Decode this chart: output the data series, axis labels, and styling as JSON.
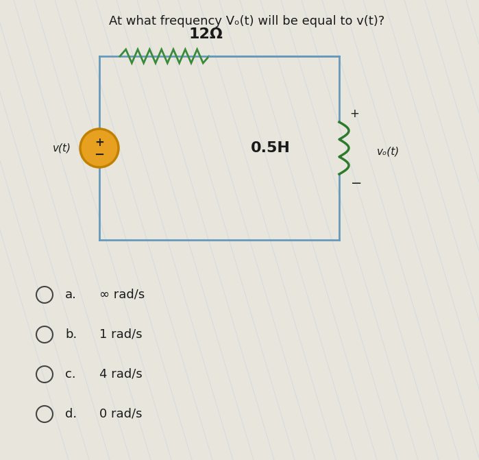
{
  "title": "At what frequency Vₒ(t) will be equal to v(t)?",
  "resistor_label": "12Ω",
  "inductor_label": "0.5H",
  "source_label": "v(t)",
  "output_label": "vₒ(t)",
  "options_letters": [
    "a.",
    "b.",
    "c.",
    "d."
  ],
  "options_values": [
    "∞ rad/s",
    "1 rad/s",
    "4 rad/s",
    "0 rad/s"
  ],
  "bg_color": "#e8e6dc",
  "circuit_bg": "#e0dfd5",
  "box_color": "#6699bb",
  "resistor_color": "#3a8a3a",
  "inductor_color": "#2d7a2d",
  "source_fill": "#e8a020",
  "source_stroke": "#c08000",
  "text_color": "#1a1a1a",
  "title_fontsize": 13,
  "label_fontsize": 16,
  "option_fontsize": 13
}
